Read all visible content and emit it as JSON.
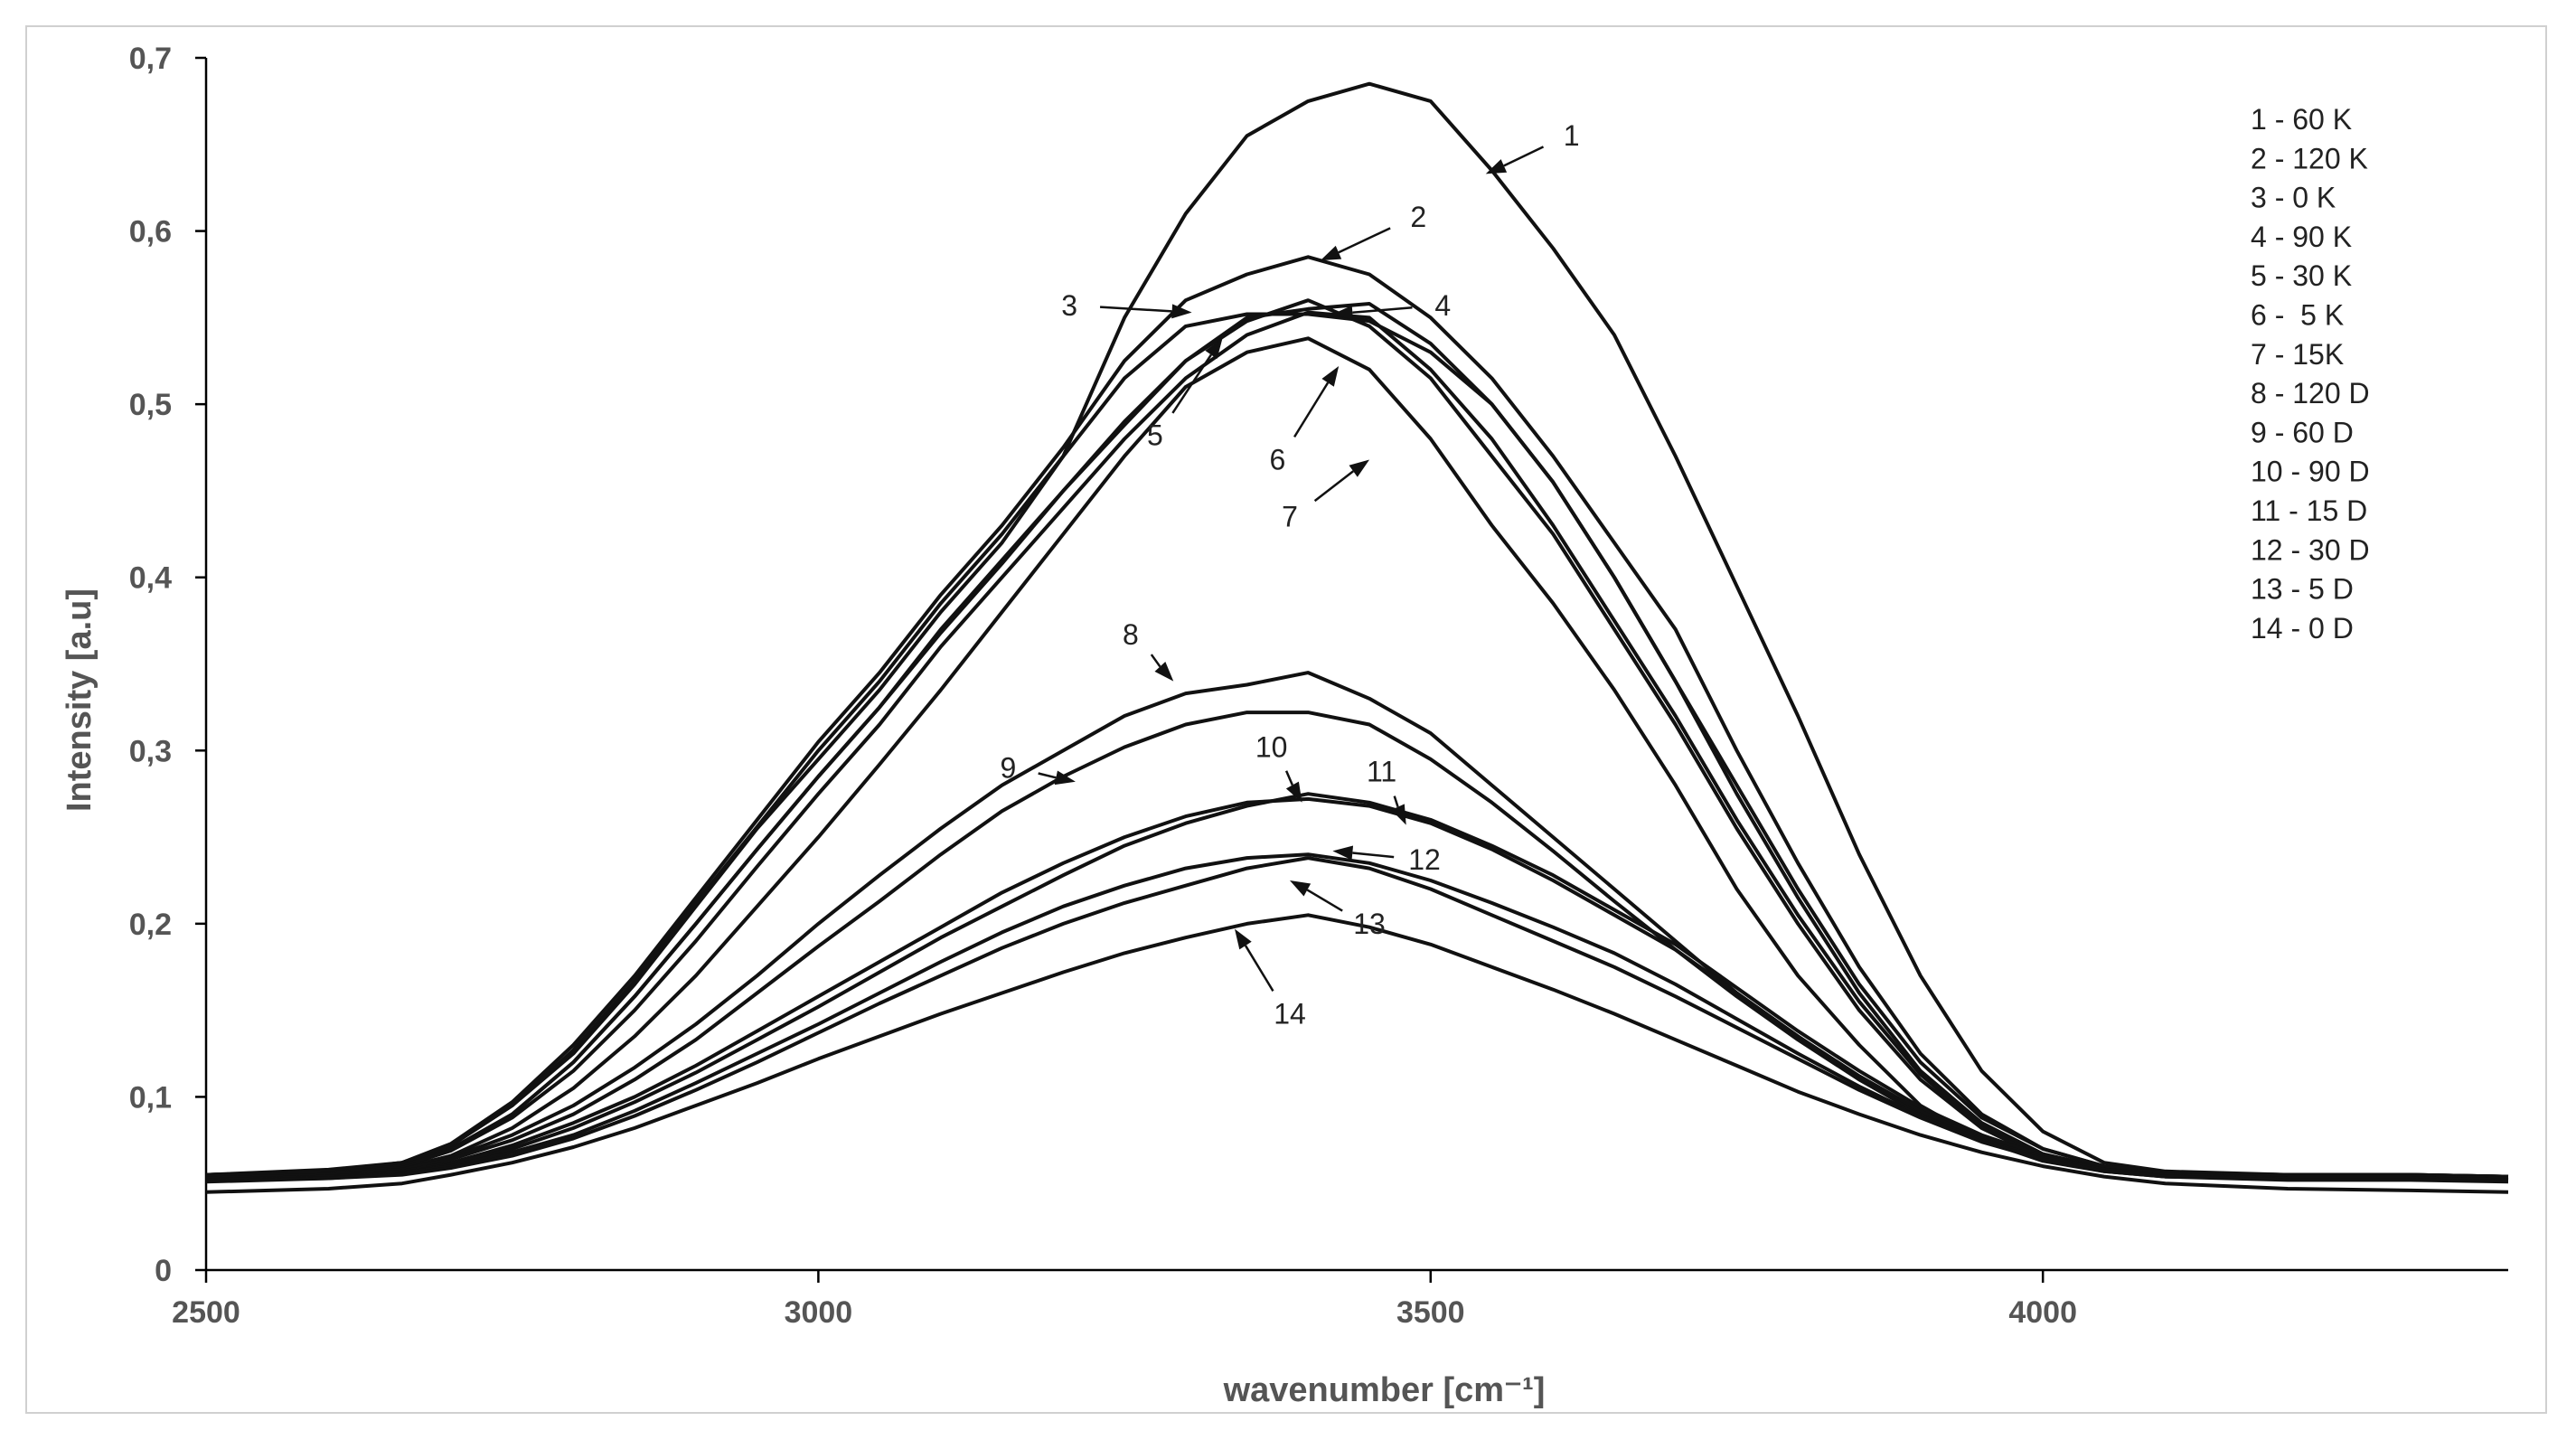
{
  "chart_data": {
    "type": "line",
    "title": "",
    "xlabel": "wavenumber [cm⁻¹]",
    "ylabel": "Intensity [a.u]",
    "xlim": [
      2500,
      4380
    ],
    "ylim": [
      0,
      0.7
    ],
    "x_ticks": [
      2500,
      3000,
      3500,
      4000
    ],
    "y_ticks": [
      0,
      0.1,
      0.2,
      0.3,
      0.4,
      0.5,
      0.6,
      0.7
    ],
    "y_tick_labels": [
      "0",
      "0,1",
      "0,2",
      "0,3",
      "0,4",
      "0,5",
      "0,6",
      "0,7"
    ],
    "grid": false,
    "legend_position": "top-right",
    "legend": [
      "1 - 60 K",
      "2 - 120 K",
      "3 - 0 K",
      "4 - 90 K",
      "5 - 30 K",
      "6 -  5 K",
      "7 - 15K",
      "8 - 120 D",
      "9 - 60 D",
      "10 - 90 D",
      "11 - 15 D",
      "12 - 30 D",
      "13 - 5 D",
      "14 - 0 D"
    ],
    "x": [
      2500,
      2600,
      2660,
      2700,
      2750,
      2800,
      2850,
      2900,
      2950,
      3000,
      3050,
      3100,
      3150,
      3200,
      3250,
      3300,
      3350,
      3400,
      3450,
      3500,
      3550,
      3600,
      3650,
      3700,
      3750,
      3800,
      3850,
      3900,
      3950,
      4000,
      4050,
      4100,
      4200,
      4300,
      4380
    ],
    "series": [
      {
        "name": "1",
        "values": [
          0.055,
          0.058,
          0.062,
          0.072,
          0.095,
          0.125,
          0.165,
          0.21,
          0.255,
          0.295,
          0.335,
          0.38,
          0.42,
          0.47,
          0.55,
          0.61,
          0.655,
          0.675,
          0.685,
          0.675,
          0.635,
          0.59,
          0.54,
          0.47,
          0.395,
          0.32,
          0.24,
          0.17,
          0.115,
          0.08,
          0.062,
          0.057,
          0.055,
          0.055,
          0.054
        ]
      },
      {
        "name": "2",
        "values": [
          0.055,
          0.057,
          0.062,
          0.073,
          0.097,
          0.13,
          0.17,
          0.215,
          0.26,
          0.305,
          0.345,
          0.39,
          0.43,
          0.475,
          0.525,
          0.56,
          0.575,
          0.585,
          0.575,
          0.55,
          0.515,
          0.47,
          0.42,
          0.37,
          0.3,
          0.235,
          0.175,
          0.125,
          0.09,
          0.07,
          0.06,
          0.056,
          0.055,
          0.055,
          0.054
        ]
      },
      {
        "name": "3",
        "values": [
          0.055,
          0.057,
          0.062,
          0.072,
          0.095,
          0.127,
          0.167,
          0.212,
          0.256,
          0.3,
          0.34,
          0.385,
          0.425,
          0.47,
          0.515,
          0.545,
          0.552,
          0.552,
          0.548,
          0.53,
          0.5,
          0.455,
          0.4,
          0.34,
          0.275,
          0.215,
          0.16,
          0.115,
          0.085,
          0.067,
          0.059,
          0.056,
          0.055,
          0.055,
          0.054
        ]
      },
      {
        "name": "4",
        "values": [
          0.055,
          0.057,
          0.061,
          0.07,
          0.09,
          0.12,
          0.158,
          0.2,
          0.243,
          0.285,
          0.325,
          0.37,
          0.41,
          0.45,
          0.49,
          0.525,
          0.55,
          0.555,
          0.558,
          0.535,
          0.5,
          0.455,
          0.4,
          0.34,
          0.28,
          0.22,
          0.165,
          0.12,
          0.088,
          0.07,
          0.06,
          0.056,
          0.055,
          0.055,
          0.054
        ]
      },
      {
        "name": "5",
        "values": [
          0.054,
          0.056,
          0.06,
          0.069,
          0.088,
          0.115,
          0.15,
          0.19,
          0.233,
          0.275,
          0.315,
          0.36,
          0.4,
          0.44,
          0.48,
          0.515,
          0.54,
          0.553,
          0.55,
          0.52,
          0.48,
          0.43,
          0.375,
          0.32,
          0.26,
          0.205,
          0.155,
          0.113,
          0.083,
          0.066,
          0.058,
          0.055,
          0.054,
          0.054,
          0.053
        ]
      },
      {
        "name": "6",
        "values": [
          0.054,
          0.056,
          0.06,
          0.069,
          0.09,
          0.12,
          0.158,
          0.2,
          0.243,
          0.285,
          0.325,
          0.368,
          0.408,
          0.45,
          0.488,
          0.525,
          0.548,
          0.56,
          0.545,
          0.515,
          0.47,
          0.425,
          0.37,
          0.315,
          0.255,
          0.2,
          0.15,
          0.11,
          0.082,
          0.065,
          0.058,
          0.055,
          0.054,
          0.054,
          0.053
        ]
      },
      {
        "name": "7",
        "values": [
          0.054,
          0.056,
          0.059,
          0.066,
          0.082,
          0.105,
          0.135,
          0.17,
          0.21,
          0.25,
          0.292,
          0.335,
          0.38,
          0.425,
          0.47,
          0.51,
          0.53,
          0.538,
          0.52,
          0.48,
          0.43,
          0.385,
          0.335,
          0.28,
          0.22,
          0.17,
          0.13,
          0.095,
          0.075,
          0.063,
          0.057,
          0.054,
          0.053,
          0.053,
          0.052
        ]
      },
      {
        "name": "8",
        "values": [
          0.053,
          0.055,
          0.058,
          0.065,
          0.078,
          0.095,
          0.117,
          0.142,
          0.17,
          0.2,
          0.228,
          0.255,
          0.28,
          0.3,
          0.32,
          0.333,
          0.338,
          0.345,
          0.33,
          0.31,
          0.28,
          0.25,
          0.22,
          0.19,
          0.16,
          0.135,
          0.11,
          0.09,
          0.075,
          0.065,
          0.058,
          0.055,
          0.053,
          0.053,
          0.052
        ]
      },
      {
        "name": "9",
        "values": [
          0.053,
          0.055,
          0.058,
          0.064,
          0.075,
          0.09,
          0.11,
          0.133,
          0.16,
          0.187,
          0.213,
          0.24,
          0.265,
          0.285,
          0.302,
          0.315,
          0.322,
          0.322,
          0.315,
          0.295,
          0.27,
          0.242,
          0.213,
          0.185,
          0.158,
          0.133,
          0.11,
          0.09,
          0.075,
          0.065,
          0.058,
          0.055,
          0.053,
          0.053,
          0.052
        ]
      },
      {
        "name": "10",
        "values": [
          0.052,
          0.054,
          0.057,
          0.062,
          0.072,
          0.085,
          0.1,
          0.118,
          0.138,
          0.158,
          0.178,
          0.198,
          0.218,
          0.235,
          0.25,
          0.262,
          0.27,
          0.272,
          0.268,
          0.258,
          0.243,
          0.225,
          0.205,
          0.185,
          0.16,
          0.135,
          0.112,
          0.092,
          0.077,
          0.066,
          0.058,
          0.055,
          0.053,
          0.053,
          0.052
        ]
      },
      {
        "name": "11",
        "values": [
          0.052,
          0.054,
          0.056,
          0.061,
          0.07,
          0.082,
          0.097,
          0.114,
          0.133,
          0.152,
          0.172,
          0.192,
          0.21,
          0.228,
          0.245,
          0.258,
          0.268,
          0.275,
          0.27,
          0.26,
          0.245,
          0.228,
          0.208,
          0.188,
          0.163,
          0.138,
          0.115,
          0.094,
          0.078,
          0.066,
          0.058,
          0.055,
          0.053,
          0.053,
          0.052
        ]
      },
      {
        "name": "12",
        "values": [
          0.052,
          0.053,
          0.056,
          0.06,
          0.068,
          0.078,
          0.092,
          0.108,
          0.125,
          0.142,
          0.16,
          0.178,
          0.195,
          0.21,
          0.222,
          0.232,
          0.238,
          0.24,
          0.235,
          0.225,
          0.212,
          0.198,
          0.183,
          0.165,
          0.145,
          0.125,
          0.106,
          0.089,
          0.075,
          0.065,
          0.058,
          0.054,
          0.053,
          0.053,
          0.052
        ]
      },
      {
        "name": "13",
        "values": [
          0.051,
          0.053,
          0.055,
          0.059,
          0.066,
          0.076,
          0.089,
          0.104,
          0.12,
          0.137,
          0.154,
          0.17,
          0.186,
          0.2,
          0.212,
          0.222,
          0.232,
          0.238,
          0.232,
          0.22,
          0.205,
          0.19,
          0.175,
          0.158,
          0.14,
          0.122,
          0.104,
          0.088,
          0.074,
          0.064,
          0.057,
          0.054,
          0.052,
          0.052,
          0.051
        ]
      },
      {
        "name": "14",
        "values": [
          0.045,
          0.047,
          0.05,
          0.055,
          0.062,
          0.071,
          0.082,
          0.095,
          0.108,
          0.122,
          0.135,
          0.148,
          0.16,
          0.172,
          0.183,
          0.192,
          0.2,
          0.205,
          0.198,
          0.188,
          0.175,
          0.162,
          0.148,
          0.133,
          0.118,
          0.103,
          0.09,
          0.078,
          0.068,
          0.06,
          0.054,
          0.05,
          0.047,
          0.046,
          0.045
        ]
      }
    ],
    "callouts": [
      {
        "label": "1",
        "text_x": 3615,
        "text_y": 0.655,
        "tip_x": 3545,
        "tip_y": 0.633
      },
      {
        "label": "2",
        "text_x": 3490,
        "text_y": 0.608,
        "tip_x": 3410,
        "tip_y": 0.583
      },
      {
        "label": "3",
        "text_x": 3205,
        "text_y": 0.557,
        "tip_x": 3305,
        "tip_y": 0.553
      },
      {
        "label": "4",
        "text_x": 3510,
        "text_y": 0.557,
        "tip_x": 3420,
        "tip_y": 0.552
      },
      {
        "label": "5",
        "text_x": 3275,
        "text_y": 0.482,
        "tip_x": 3330,
        "tip_y": 0.538
      },
      {
        "label": "6",
        "text_x": 3375,
        "text_y": 0.468,
        "tip_x": 3425,
        "tip_y": 0.522
      },
      {
        "label": "7",
        "text_x": 3385,
        "text_y": 0.435,
        "tip_x": 3450,
        "tip_y": 0.468
      },
      {
        "label": "8",
        "text_x": 3255,
        "text_y": 0.367,
        "tip_x": 3290,
        "tip_y": 0.34
      },
      {
        "label": "9",
        "text_x": 3155,
        "text_y": 0.29,
        "tip_x": 3210,
        "tip_y": 0.282
      },
      {
        "label": "10",
        "text_x": 3370,
        "text_y": 0.302,
        "tip_x": 3395,
        "tip_y": 0.27
      },
      {
        "label": "11",
        "text_x": 3460,
        "text_y": 0.288,
        "tip_x": 3480,
        "tip_y": 0.257
      },
      {
        "label": "12",
        "text_x": 3495,
        "text_y": 0.237,
        "tip_x": 3420,
        "tip_y": 0.242
      },
      {
        "label": "13",
        "text_x": 3450,
        "text_y": 0.2,
        "tip_x": 3385,
        "tip_y": 0.225
      },
      {
        "label": "14",
        "text_x": 3385,
        "text_y": 0.148,
        "tip_x": 3340,
        "tip_y": 0.197
      }
    ]
  }
}
